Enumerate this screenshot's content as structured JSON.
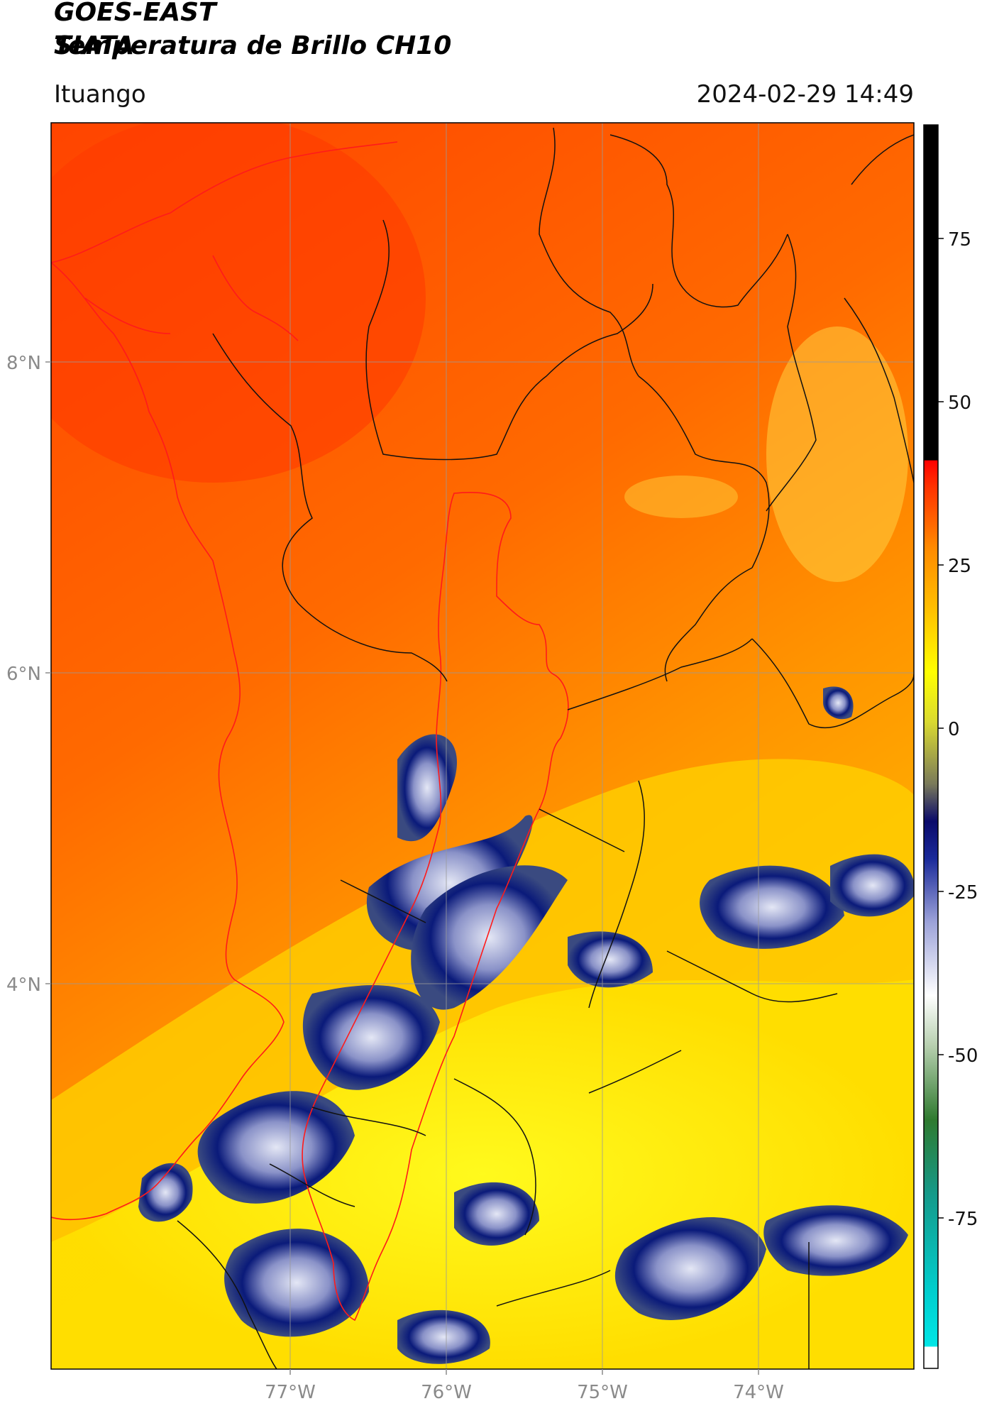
{
  "header": {
    "title_line1": "GOES-EAST",
    "title_line2": "Temperatura de Brillo CH10",
    "org": "SIATA",
    "location": "Ituango",
    "datetime": "2024-02-29 14:49"
  },
  "map": {
    "lat_ticks": [
      "8°N",
      "6°N",
      "4°N"
    ],
    "lon_ticks": [
      "77°W",
      "76°W",
      "75°W",
      "74°W"
    ]
  },
  "colorbar": {
    "ticks": [
      "75",
      "50",
      "25",
      "0",
      "-25",
      "-50",
      "-75"
    ],
    "range": [
      -92,
      90
    ],
    "colors": {
      "warm": "#ff4a00",
      "orange": "#ff9a00",
      "yellow": "#ffff00",
      "navy": "#0a1a7a",
      "light": "#d8dcf0",
      "green": "#3a8a3a",
      "cyan": "#00e0e0",
      "black": "#000000"
    }
  }
}
